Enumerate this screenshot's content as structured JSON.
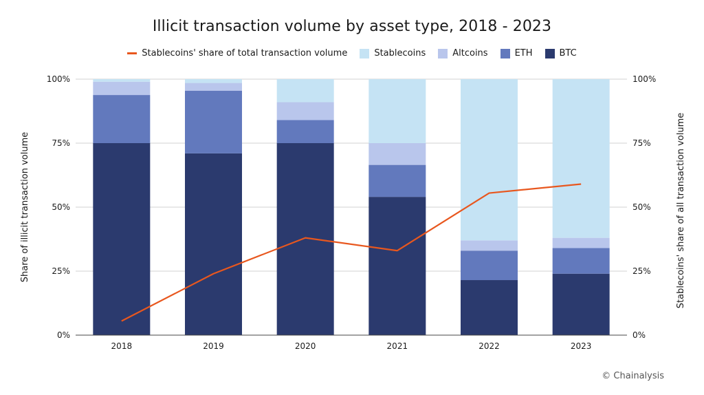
{
  "title": "Illicit transaction volume by asset type, 2018 - 2023",
  "credit": "© Chainalysis",
  "chart_data": {
    "type": "bar",
    "stacked": true,
    "categories": [
      "2018",
      "2019",
      "2020",
      "2021",
      "2022",
      "2023"
    ],
    "series": [
      {
        "name": "BTC",
        "color": "#2b3a6e",
        "values": [
          75,
          71,
          75,
          54,
          21.5,
          24
        ]
      },
      {
        "name": "ETH",
        "color": "#6279bd",
        "values": [
          18.8,
          24.5,
          9,
          12.5,
          11.5,
          10
        ]
      },
      {
        "name": "Altcoins",
        "color": "#b9c6ec",
        "values": [
          5.2,
          3,
          7,
          8.5,
          4,
          4
        ]
      },
      {
        "name": "Stablecoins",
        "color": "#c5e3f4",
        "values": [
          1,
          1.5,
          9,
          25,
          63,
          62
        ]
      }
    ],
    "line_series": {
      "name": "Stablecoins' share of total transaction volume",
      "color": "#e8571e",
      "axis": "right",
      "values": [
        5.5,
        24,
        38,
        33,
        55.5,
        59
      ]
    },
    "ylabel": "Share of illicit transaction volume",
    "y2label": "Stablecoins' share of all transaction volume",
    "ylim": [
      0,
      100
    ],
    "y2lim": [
      0,
      100
    ],
    "yticks": [
      "0%",
      "25%",
      "50%",
      "75%",
      "100%"
    ],
    "ytick_values": [
      0,
      25,
      50,
      75,
      100
    ],
    "grid": true,
    "legend_position": "top-center",
    "legend_order": [
      "Stablecoins' share of total transaction volume",
      "Stablecoins",
      "Altcoins",
      "ETH",
      "BTC"
    ]
  }
}
